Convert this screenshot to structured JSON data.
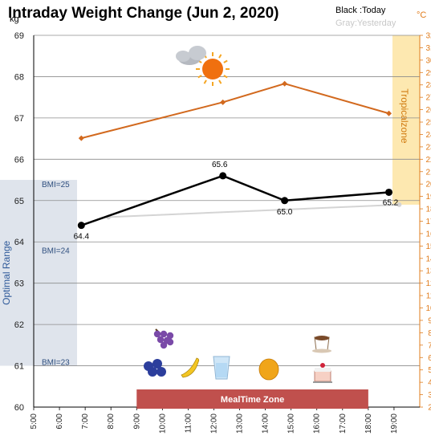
{
  "chart_data": {
    "type": "line",
    "title": "Intraday Weight Change (Jun 2, 2020)",
    "legend": [
      "Black :Today",
      "Gray:Yesterday"
    ],
    "y_left_unit": "kg",
    "y_right_unit": "°C",
    "ylim_left": [
      60,
      69
    ],
    "ylim_right": [
      2,
      32
    ],
    "x_ticks": [
      "5:00",
      "6:00",
      "7:00",
      "8:00",
      "9:00",
      "10:00",
      "11:00",
      "12:00",
      "13:00",
      "14:00",
      "15:00",
      "16:00",
      "17:00",
      "18:00",
      "19:00"
    ],
    "grid": true,
    "series": [
      {
        "name": "Today",
        "color": "#000000",
        "x": [
          6.85,
          12.35,
          14.75,
          18.8
        ],
        "y": [
          64.4,
          65.6,
          65.0,
          65.2
        ],
        "labels": [
          "64.4",
          "65.6",
          "65.0",
          "65.2"
        ]
      },
      {
        "name": "Yesterday",
        "color": "#d4d4d4",
        "x": [
          7.9,
          19.2
        ],
        "y": [
          64.6,
          64.9
        ]
      },
      {
        "name": "Temperature",
        "axis": "right",
        "color": "#d2691e",
        "x": [
          6.85,
          12.35,
          14.75,
          18.8
        ],
        "y": [
          23.7,
          26.6,
          28.1,
          25.7
        ]
      }
    ],
    "bands": {
      "optimal_range": {
        "label": "Optimal Range",
        "ymin": 61.0,
        "ymax": 65.5
      },
      "tropical_zone": {
        "label": "Tropicalzone",
        "ymin": 64.9,
        "ymax": 69.0
      },
      "meal_zone": {
        "label": "MealTime Zone",
        "xmin": 9.0,
        "xmax": 18.0
      }
    },
    "bmi_marks": [
      {
        "label": "BMI=25",
        "y": 65.4
      },
      {
        "label": "BMI=24",
        "y": 63.8
      },
      {
        "label": "BMI=23",
        "y": 61.1
      }
    ],
    "icons": [
      "cloud-sun-icon",
      "grapes-icon",
      "blueberries-icon",
      "banana-icon",
      "water-glass-icon",
      "mango-icon",
      "coffee-icon",
      "cake-icon"
    ]
  }
}
